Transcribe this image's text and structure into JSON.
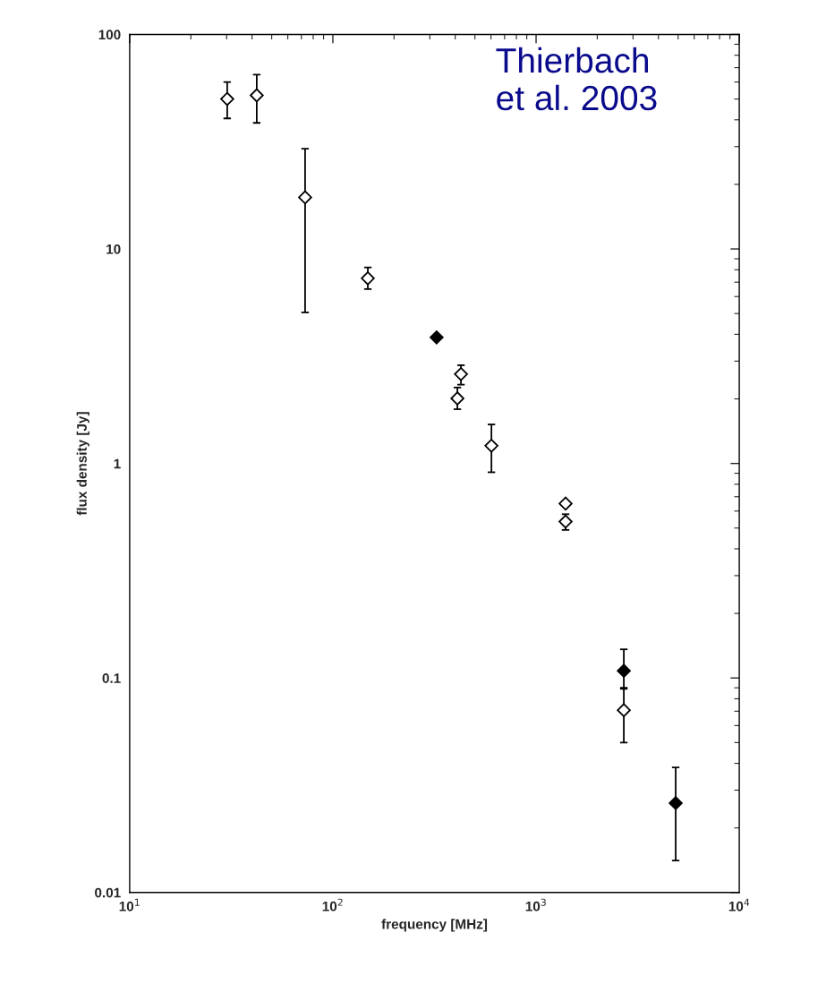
{
  "chart_data": {
    "type": "scatter",
    "xlabel": "frequency [MHz]",
    "ylabel": "flux density [Jy]",
    "log": "xy",
    "grid": false,
    "marker": "diamond",
    "line_style": "none",
    "xlim": [
      10,
      10000
    ],
    "ylim": [
      0.01,
      100
    ],
    "xticks": [
      {
        "value": 10,
        "label": "10$^{1}$"
      },
      {
        "value": 100,
        "label": "10$^{2}$"
      },
      {
        "value": 1000,
        "label": "10$^{3}$"
      },
      {
        "value": 10000,
        "label": "10$^{4}$"
      }
    ],
    "yticks": [
      0.01,
      0.1,
      1,
      10,
      100
    ],
    "annotations": [
      "Thierbach\net al. 2003"
    ],
    "series": [
      {
        "color": "#ffffff",
        "x": [
          30.2,
          42.2,
          73,
          148.6,
          410,
          427,
          603,
          1397,
          1397,
          2703
        ],
        "values": [
          50,
          52,
          17.4,
          7.3,
          2.01,
          2.61,
          1.21,
          0.65,
          0.536,
          0.0708
        ],
        "errors": [
          [
            40.6,
            60
          ],
          [
            38.7,
            65
          ],
          [
            5.06,
            29.3
          ],
          [
            6.5,
            8.2
          ],
          [
            1.79,
            2.26
          ],
          [
            2.33,
            2.87
          ],
          [
            0.91,
            1.52
          ],
          null,
          [
            0.49,
            0.58
          ],
          [
            0.05,
            0.09
          ]
        ]
      },
      {
        "color": "#000000",
        "x": [
          324,
          2703,
          4865
        ],
        "values": [
          3.87,
          0.108,
          0.0261
        ],
        "errors": [
          null,
          [
            0.089,
            0.136
          ],
          [
            0.0141,
            0.0383
          ]
        ]
      }
    ]
  }
}
